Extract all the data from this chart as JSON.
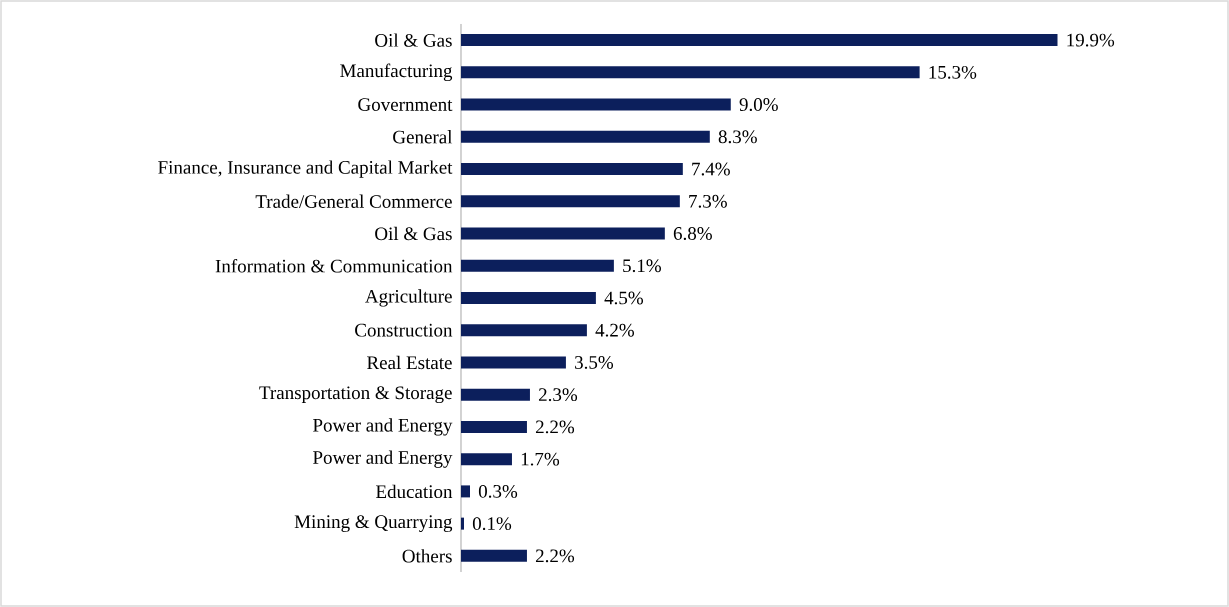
{
  "chart_data": {
    "type": "bar",
    "orientation": "horizontal",
    "color": "#0c1f5c",
    "categories": [
      "Oil & Gas",
      "Manufacturing",
      "Government",
      "General",
      "Finance, Insurance and Capital Market",
      "Trade/General Commerce",
      "Oil & Gas",
      "Information & Communication",
      "Agriculture",
      "Construction",
      "Real Estate",
      "Transportation & Storage",
      "Power and Energy",
      "Power and Energy",
      "Education",
      "Mining & Quarrying",
      "Others"
    ],
    "values": [
      19.9,
      15.3,
      9.0,
      8.3,
      7.4,
      7.3,
      6.8,
      5.1,
      4.5,
      4.2,
      3.5,
      2.3,
      2.2,
      1.7,
      0.3,
      0.1,
      2.2
    ],
    "value_labels": [
      "19.9%",
      "15.3%",
      "9.0%",
      "8.3%",
      "7.4%",
      "7.3%",
      "6.8%",
      "5.1%",
      "4.5%",
      "4.2%",
      "3.5%",
      "2.3%",
      "2.2%",
      "1.7%",
      "0.3%",
      "0.1%",
      "2.2%"
    ]
  }
}
